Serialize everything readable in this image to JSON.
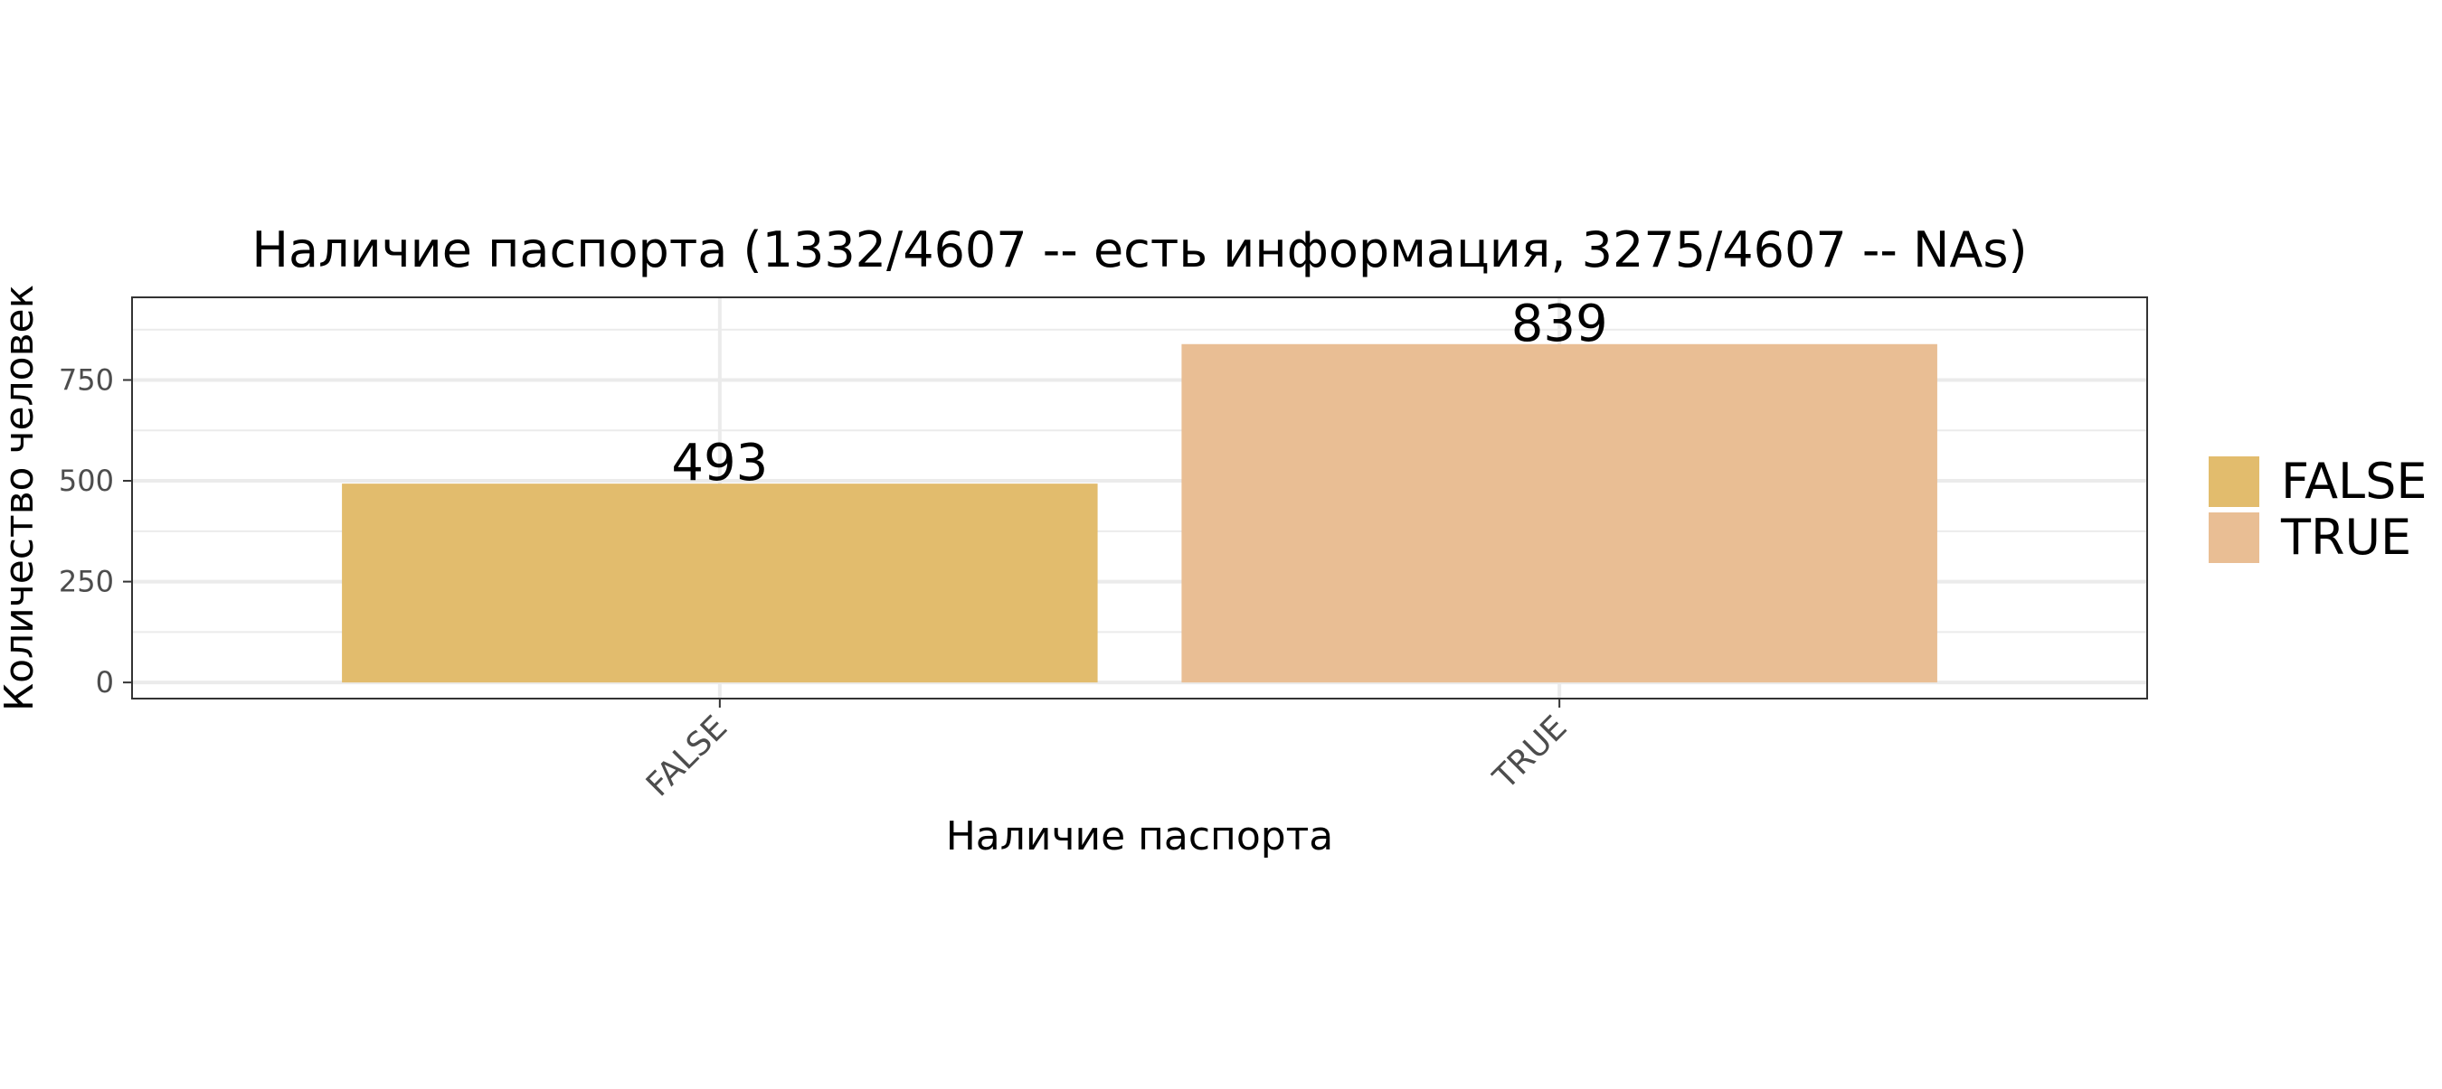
{
  "chart_data": {
    "type": "bar",
    "title": "Наличие паспорта (1332/4607 -- есть информация, 3275/4607 -- NAs)",
    "xlabel": "Наличие паспорта",
    "ylabel": "Количество человек",
    "categories": [
      "FALSE",
      "TRUE"
    ],
    "values": [
      493,
      839
    ],
    "data_labels": [
      "493",
      "839"
    ],
    "colors": [
      "#E2BC6D",
      "#E9BE94"
    ],
    "ylim": [
      -40,
      955
    ],
    "yticks": [
      0,
      250,
      500,
      750
    ],
    "ytick_labels": [
      "0",
      "250",
      "500",
      "750"
    ],
    "grid": true,
    "legend": {
      "position": "right",
      "entries": [
        "FALSE",
        "TRUE"
      ]
    }
  }
}
